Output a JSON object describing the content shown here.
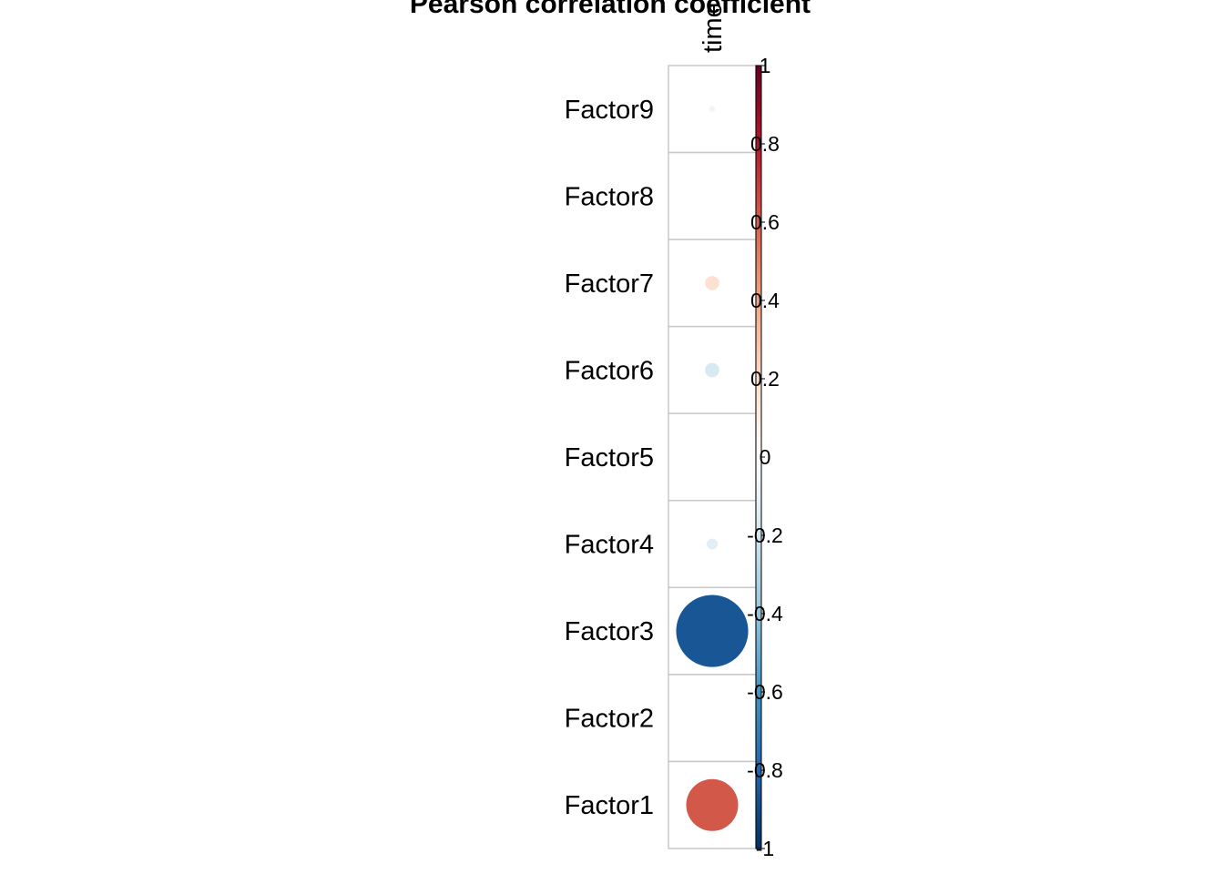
{
  "chart_data": {
    "type": "heatmap",
    "title": "Pearson correlation coefficient",
    "columns": [
      "time"
    ],
    "rows": [
      "Factor9",
      "Factor8",
      "Factor7",
      "Factor6",
      "Factor5",
      "Factor4",
      "Factor3",
      "Factor2",
      "Factor1"
    ],
    "values": [
      -0.07,
      0.0,
      0.17,
      -0.17,
      0.0,
      -0.13,
      -0.86,
      -0.02,
      0.62
    ],
    "colorbar": {
      "range": [
        -1,
        1
      ],
      "ticks": [
        "1",
        "0.8",
        "0.6",
        "0.4",
        "0.2",
        "0",
        "-0.2",
        "-0.4",
        "-0.6",
        "-0.8",
        "-1"
      ],
      "negative_color": "#053061",
      "mid_color": "#FFFFFF",
      "positive_color": "#67001F"
    },
    "grid": true,
    "legend_position": "right"
  }
}
